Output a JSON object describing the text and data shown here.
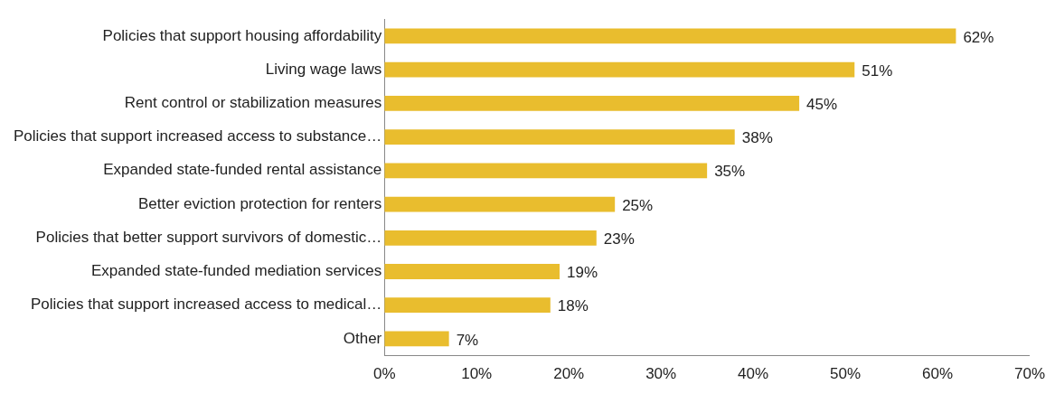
{
  "chart_data": {
    "type": "bar",
    "orientation": "horizontal",
    "categories": [
      "Policies that support housing affordability",
      "Living wage laws",
      "Rent control or stabilization measures",
      "Policies that support increased access to substance…",
      "Expanded state-funded rental assistance",
      "Better eviction protection for renters",
      "Policies that better support survivors of domestic…",
      "Expanded state-funded mediation services",
      "Policies that support increased access to medical…",
      "Other"
    ],
    "values": [
      62,
      51,
      45,
      38,
      35,
      25,
      23,
      19,
      18,
      7
    ],
    "value_labels": [
      "62%",
      "51%",
      "45%",
      "38%",
      "35%",
      "25%",
      "23%",
      "19%",
      "18%",
      "7%"
    ],
    "color": "#e9bd2e",
    "xlim": [
      0,
      70
    ],
    "xticks": [
      {
        "value": 0,
        "label": "0%"
      },
      {
        "value": 10,
        "label": "10%"
      },
      {
        "value": 20,
        "label": "20%"
      },
      {
        "value": 30,
        "label": "30%"
      },
      {
        "value": 40,
        "label": "40%"
      },
      {
        "value": 50,
        "label": "50%"
      },
      {
        "value": 60,
        "label": "60%"
      },
      {
        "value": 70,
        "label": "70%"
      }
    ],
    "grid": false,
    "legend": false
  }
}
